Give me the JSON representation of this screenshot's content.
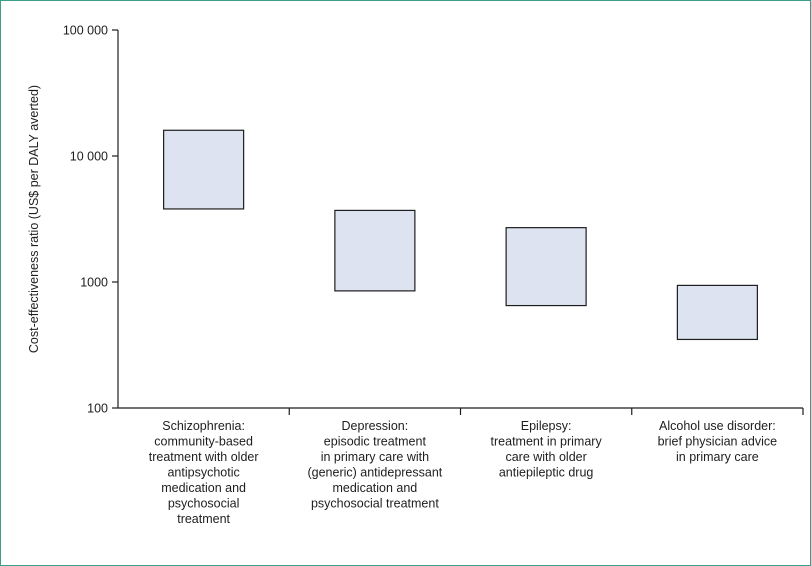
{
  "chart_data": {
    "type": "box",
    "ylabel": "Cost-effectiveness ratio (US$ per DALY averted)",
    "yscale": "log",
    "ylim": [
      100,
      100000
    ],
    "yticks": [
      {
        "value": 100,
        "label": "100"
      },
      {
        "value": 1000,
        "label": "1000"
      },
      {
        "value": 10000,
        "label": "10 000"
      },
      {
        "value": 100000,
        "label": "100 000"
      }
    ],
    "categories": [
      {
        "label_lines": [
          "Schizophrenia:",
          "community-based",
          "treatment with older",
          "antipsychotic",
          "medication and",
          "psychosocial",
          "treatment"
        ],
        "low": 3800,
        "high": 16000
      },
      {
        "label_lines": [
          "Depression:",
          "episodic treatment",
          "in primary care with",
          "(generic) antidepressant",
          "medication and",
          "psychosocial treatment"
        ],
        "low": 850,
        "high": 3700
      },
      {
        "label_lines": [
          "Epilepsy:",
          "treatment in primary",
          "care with older",
          "antiepileptic drug"
        ],
        "low": 650,
        "high": 2700
      },
      {
        "label_lines": [
          "Alcohol use disorder:",
          "brief physician advice",
          "in primary care"
        ],
        "low": 350,
        "high": 940
      }
    ],
    "colors": {
      "box_fill": "#dde3f1",
      "box_stroke": "#1e1e1e",
      "axis": "#1e1e1e",
      "frame": "#3a9e8a"
    },
    "grid": false,
    "legend": "none"
  }
}
